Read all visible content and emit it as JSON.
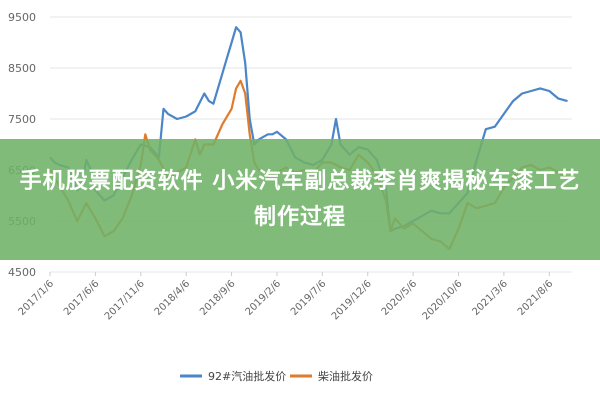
{
  "overlay": {
    "headline": "手机股票配资软件 小米汽车副总裁李肖爽揭秘车漆工艺制作过程"
  },
  "chart_data": {
    "type": "line",
    "y_ticks": [
      4500,
      5500,
      6500,
      7500,
      8500,
      9500
    ],
    "ylim": [
      4500,
      9500
    ],
    "x_tick_labels": [
      "2017/1/6",
      "2017/6/6",
      "2017/11/6",
      "2018/4/6",
      "2018/9/6",
      "2019/2/6",
      "2019/7/6",
      "2019/12/6",
      "2020/5/6",
      "2020/10/6",
      "2021/3/6",
      "2021/8/6"
    ],
    "x_tick_index": [
      0,
      5,
      10,
      15,
      20,
      25,
      30,
      35,
      40,
      45,
      50,
      55
    ],
    "x_range": [
      0,
      57.5
    ],
    "grid": "horizontal",
    "legend_position": "bottom",
    "series": [
      {
        "name": "92#汽油批发价",
        "color": "#4a86c8",
        "points": [
          [
            0,
            6750
          ],
          [
            0.5,
            6650
          ],
          [
            1,
            6600
          ],
          [
            2,
            6550
          ],
          [
            3,
            6100
          ],
          [
            3.5,
            6200
          ],
          [
            4,
            6700
          ],
          [
            4.5,
            6500
          ],
          [
            5,
            6100
          ],
          [
            6,
            5900
          ],
          [
            7,
            6000
          ],
          [
            8,
            6350
          ],
          [
            9,
            6700
          ],
          [
            10,
            7000
          ],
          [
            11,
            6950
          ],
          [
            12,
            6750
          ],
          [
            12.5,
            7700
          ],
          [
            13,
            7600
          ],
          [
            14,
            7500
          ],
          [
            15,
            7550
          ],
          [
            16,
            7650
          ],
          [
            17,
            8000
          ],
          [
            17.5,
            7850
          ],
          [
            18,
            7800
          ],
          [
            19,
            8400
          ],
          [
            19.5,
            8700
          ],
          [
            20,
            9000
          ],
          [
            20.5,
            9300
          ],
          [
            21,
            9200
          ],
          [
            21.5,
            8600
          ],
          [
            22,
            7500
          ],
          [
            22.5,
            7000
          ],
          [
            23,
            7100
          ],
          [
            24,
            7200
          ],
          [
            24.5,
            7200
          ],
          [
            25,
            7250
          ],
          [
            26,
            7100
          ],
          [
            27,
            6750
          ],
          [
            28,
            6650
          ],
          [
            29,
            6600
          ],
          [
            30,
            6700
          ],
          [
            31,
            7000
          ],
          [
            31.5,
            7500
          ],
          [
            32,
            7000
          ],
          [
            33,
            6800
          ],
          [
            34,
            6950
          ],
          [
            35,
            6900
          ],
          [
            36,
            6700
          ],
          [
            37,
            6150
          ],
          [
            37.5,
            5300
          ],
          [
            38,
            5350
          ],
          [
            39,
            5400
          ],
          [
            40,
            5500
          ],
          [
            41,
            5600
          ],
          [
            42,
            5700
          ],
          [
            43,
            5650
          ],
          [
            44,
            5650
          ],
          [
            45,
            5850
          ],
          [
            46,
            6050
          ],
          [
            47,
            6700
          ],
          [
            48,
            7300
          ],
          [
            49,
            7350
          ],
          [
            50,
            7600
          ],
          [
            51,
            7850
          ],
          [
            52,
            8000
          ],
          [
            53,
            8050
          ],
          [
            54,
            8100
          ],
          [
            55,
            8050
          ],
          [
            56,
            7900
          ],
          [
            57,
            7850
          ]
        ]
      },
      {
        "name": "柴油批发价",
        "color": "#e07b2c",
        "points": [
          [
            0,
            6500
          ],
          [
            0.5,
            6350
          ],
          [
            1,
            6200
          ],
          [
            2,
            5900
          ],
          [
            3,
            5500
          ],
          [
            4,
            5850
          ],
          [
            5,
            5550
          ],
          [
            6,
            5200
          ],
          [
            7,
            5300
          ],
          [
            8,
            5550
          ],
          [
            9,
            6000
          ],
          [
            10,
            6600
          ],
          [
            10.5,
            7200
          ],
          [
            11,
            6900
          ],
          [
            12,
            6700
          ],
          [
            13,
            6350
          ],
          [
            14,
            6450
          ],
          [
            15,
            6550
          ],
          [
            16,
            7100
          ],
          [
            16.5,
            6800
          ],
          [
            17,
            7000
          ],
          [
            18,
            7000
          ],
          [
            19,
            7400
          ],
          [
            20,
            7700
          ],
          [
            20.5,
            8100
          ],
          [
            21,
            8250
          ],
          [
            21.5,
            8000
          ],
          [
            22,
            7200
          ],
          [
            22.5,
            6650
          ],
          [
            23,
            6500
          ],
          [
            24,
            6400
          ],
          [
            25,
            6450
          ],
          [
            26,
            6550
          ],
          [
            27,
            6450
          ],
          [
            28,
            6500
          ],
          [
            29,
            6450
          ],
          [
            30,
            6650
          ],
          [
            31,
            6650
          ],
          [
            32,
            6550
          ],
          [
            33,
            6500
          ],
          [
            34,
            6800
          ],
          [
            35,
            6650
          ],
          [
            36,
            6400
          ],
          [
            37,
            5900
          ],
          [
            37.5,
            5300
          ],
          [
            38,
            5550
          ],
          [
            39,
            5350
          ],
          [
            40,
            5450
          ],
          [
            41,
            5300
          ],
          [
            42,
            5150
          ],
          [
            43,
            5100
          ],
          [
            44,
            4950
          ],
          [
            45,
            5350
          ],
          [
            46,
            5850
          ],
          [
            47,
            5750
          ],
          [
            48,
            5800
          ],
          [
            49,
            5850
          ],
          [
            50,
            6150
          ],
          [
            51,
            6350
          ],
          [
            52,
            6550
          ],
          [
            53,
            6600
          ],
          [
            54,
            6500
          ],
          [
            55,
            6550
          ],
          [
            56,
            6450
          ],
          [
            57,
            6350
          ]
        ]
      }
    ]
  }
}
